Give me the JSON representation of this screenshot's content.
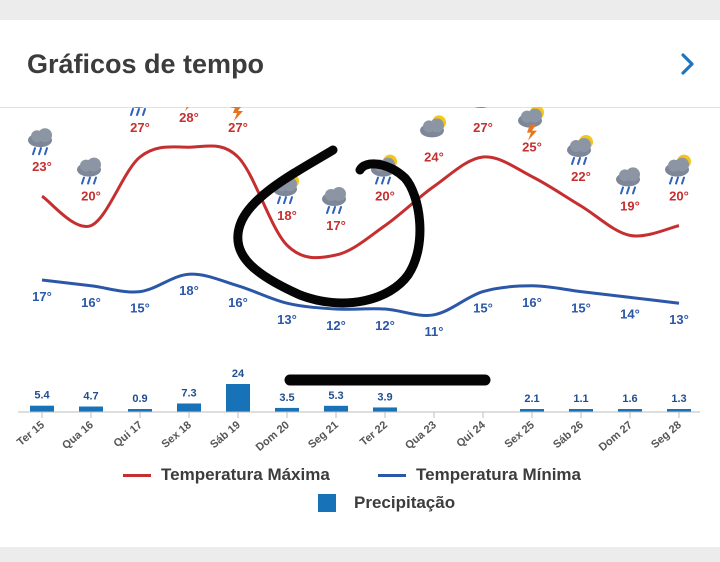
{
  "header": {
    "title": "Gráficos de tempo",
    "chevron_icon": "chevron-right-icon"
  },
  "colors": {
    "max": "#c62f2f",
    "min": "#2b57a8",
    "precip": "#1872b8"
  },
  "chart_data": {
    "type": "line",
    "categories": [
      "Ter 15",
      "Qua 16",
      "Qui 17",
      "Sex 18",
      "Sáb 19",
      "Dom 20",
      "Seg 21",
      "Ter 22",
      "Qua 23",
      "Qui 24",
      "Sex 25",
      "Sáb 26",
      "Dom 27",
      "Seg 28"
    ],
    "series": [
      {
        "name": "Temperatura Máxima",
        "type": "line",
        "values": [
          23,
          20,
          27,
          28,
          27,
          18,
          17,
          20,
          24,
          27,
          25,
          22,
          19,
          20
        ]
      },
      {
        "name": "Temperatura Mínima",
        "type": "line",
        "values": [
          17,
          16,
          15,
          18,
          16,
          13,
          12,
          12,
          11,
          15,
          16,
          15,
          14,
          13
        ]
      },
      {
        "name": "Precipitação",
        "type": "bar",
        "values": [
          5.4,
          4.7,
          0.9,
          7.3,
          24,
          3.5,
          5.3,
          3.9,
          null,
          null,
          2.1,
          1.1,
          1.6,
          1.3
        ]
      }
    ],
    "max_labels": [
      "23°",
      "20°",
      "27°",
      "28°",
      "27°",
      "18°",
      "17°",
      "20°",
      "24°",
      "27°",
      "25°",
      "22°",
      "19°",
      "20°"
    ],
    "min_labels": [
      "17°",
      "16°",
      "15°",
      "18°",
      "16°",
      "13°",
      "12°",
      "12°",
      "11°",
      "15°",
      "16°",
      "15°",
      "14°",
      "13°"
    ],
    "precip_labels": [
      "5.4",
      "4.7",
      "0.9",
      "7.3",
      "24",
      "3.5",
      "5.3",
      "3.9",
      "",
      "",
      "2.1",
      "1.1",
      "1.6",
      "1.3"
    ],
    "icons": [
      "rain-cloud-icon",
      "rain-cloud-icon",
      "sun-rain-cloud-icon",
      "thunderstorm-sun-icon",
      "thunderstorm-sun-icon",
      "sun-rain-cloud-icon",
      "rain-cloud-icon",
      "sun-rain-cloud-icon",
      "sun-cloud-icon",
      "sun-cloud-icon",
      "thunderstorm-sun-icon",
      "sun-rain-cloud-icon",
      "rain-cloud-icon",
      "sun-rain-cloud-icon"
    ],
    "legend_position": "bottom"
  },
  "legend": {
    "max_label": "Temperatura Máxima",
    "min_label": "Temperatura Mínima",
    "precip_label": "Precipitação"
  }
}
